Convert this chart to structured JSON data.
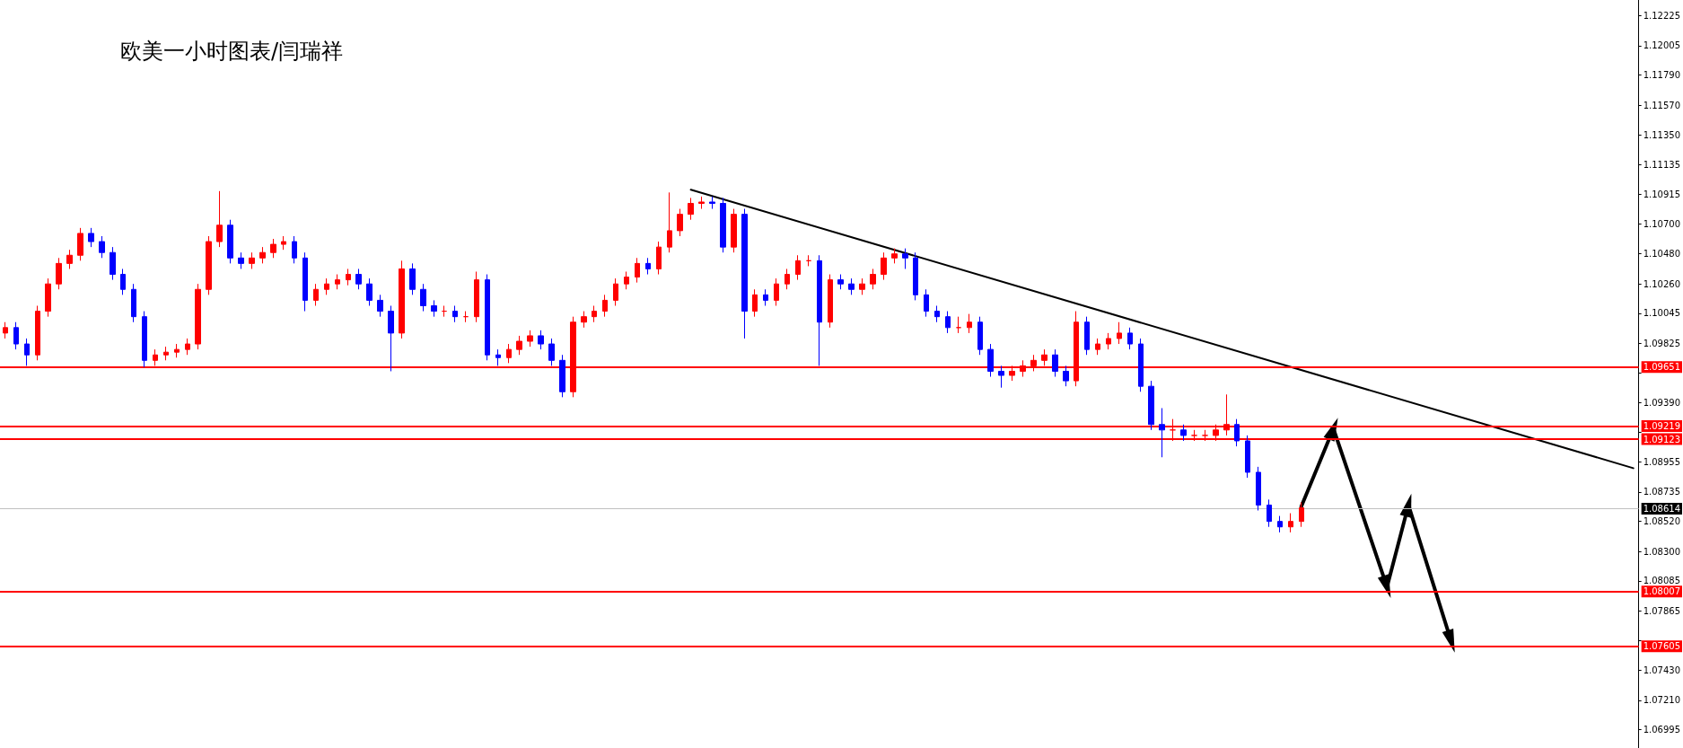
{
  "chart_data": {
    "type": "candlestick",
    "title": "欧美一小时图表/闫瑞祥",
    "tick_labels": "y",
    "grid": false,
    "categories": [
      null,
      null,
      null,
      null,
      null,
      null,
      null,
      null,
      null,
      null,
      null,
      null,
      null,
      null,
      null,
      null,
      null,
      null,
      null,
      null,
      null,
      null,
      null,
      null,
      null,
      null,
      null,
      null,
      null,
      null,
      null,
      null,
      null,
      null,
      null,
      null,
      null,
      null,
      null,
      null,
      null,
      null,
      null,
      null,
      null,
      null,
      null,
      null,
      null,
      null,
      null,
      null,
      null,
      null,
      null,
      null,
      null,
      null,
      null,
      null,
      null,
      null,
      null,
      null,
      null,
      null,
      null,
      null,
      null,
      null,
      null,
      null,
      null,
      null,
      null,
      null,
      null,
      null,
      null,
      null,
      null,
      null,
      null,
      null,
      null,
      null,
      null,
      null,
      null,
      null,
      null,
      null,
      null,
      null,
      null,
      null,
      null,
      null,
      null,
      null,
      null,
      null,
      null,
      null,
      null,
      null,
      null,
      null,
      null,
      null,
      null,
      null,
      null,
      null,
      null,
      null,
      null,
      null,
      null,
      null,
      null,
      null,
      null,
      null,
      null,
      null,
      null,
      null,
      null,
      null,
      null,
      null,
      null,
      null,
      null,
      null,
      null,
      null,
      null,
      null,
      null,
      null,
      null,
      null,
      null,
      null,
      null,
      null,
      null,
      null,
      null,
      null,
      null
    ],
    "ylim": [
      1.0686,
      1.1234
    ],
    "yticks": [
      {
        "value": 1.12225,
        "label": "1.12225"
      },
      {
        "value": 1.12005,
        "label": "1.12005"
      },
      {
        "value": 1.1179,
        "label": "1.11790"
      },
      {
        "value": 1.1157,
        "label": "1.11570"
      },
      {
        "value": 1.1135,
        "label": "1.11350"
      },
      {
        "value": 1.11135,
        "label": "1.11135"
      },
      {
        "value": 1.10915,
        "label": "1.10915"
      },
      {
        "value": 1.107,
        "label": "1.10700"
      },
      {
        "value": 1.1048,
        "label": "1.10480"
      },
      {
        "value": 1.1026,
        "label": "1.10260"
      },
      {
        "value": 1.10045,
        "label": "1.10045"
      },
      {
        "value": 1.09825,
        "label": "1.09825"
      },
      {
        "value": 1.0961,
        "label": null
      },
      {
        "value": 1.0939,
        "label": "1.09390"
      },
      {
        "value": 1.09175,
        "label": null
      },
      {
        "value": 1.08955,
        "label": "1.08955"
      },
      {
        "value": 1.08735,
        "label": "1.08735"
      },
      {
        "value": 1.0852,
        "label": "1.08520"
      },
      {
        "value": 1.083,
        "label": "1.08300"
      },
      {
        "value": 1.08085,
        "label": "1.08085"
      },
      {
        "value": 1.07865,
        "label": "1.07865"
      },
      {
        "value": 1.07645,
        "label": null
      },
      {
        "value": 1.0743,
        "label": "1.07430"
      },
      {
        "value": 1.0721,
        "label": "1.07210"
      },
      {
        "value": 1.06995,
        "label": "1.06995"
      }
    ],
    "ref_lines": [
      {
        "axis": "y",
        "value": 1.09651,
        "label": "1.09651",
        "color": "#ff0000"
      },
      {
        "axis": "y",
        "value": 1.09219,
        "label": "1.09219",
        "color": "#ff0000"
      },
      {
        "axis": "y",
        "value": 1.09123,
        "label": "1.09123",
        "color": "#ff0000"
      },
      {
        "axis": "y",
        "value": 1.08614,
        "label": "1.08614",
        "color": "#c0c0c0"
      },
      {
        "axis": "y",
        "value": 1.08007,
        "label": "1.08007",
        "color": "#ff0000"
      },
      {
        "axis": "y",
        "value": 1.07605,
        "label": "1.07605",
        "color": "#ff0000"
      }
    ],
    "series": [
      {
        "colors": [
          "#ff0000",
          "#0000ff",
          "#0000ff",
          "#ff0000",
          "#ff0000",
          "#ff0000",
          "#ff0000",
          "#ff0000",
          "#0000ff",
          "#0000ff",
          "#0000ff",
          "#0000ff",
          "#0000ff",
          "#0000ff",
          "#ff0000",
          "#ff0000",
          "#ff0000",
          "#ff0000",
          "#ff0000",
          "#ff0000",
          "#ff0000",
          "#0000ff",
          "#0000ff",
          "#ff0000",
          "#ff0000",
          "#ff0000",
          "#ff0000",
          "#0000ff",
          "#0000ff",
          "#ff0000",
          "#ff0000",
          "#ff0000",
          "#ff0000",
          "#0000ff",
          "#0000ff",
          "#0000ff",
          "#0000ff",
          "#ff0000",
          "#0000ff",
          "#0000ff",
          "#0000ff",
          "#ff0000",
          "#0000ff",
          "#ff0000",
          "#ff0000",
          "#0000ff",
          "#0000ff",
          "#ff0000",
          "#ff0000",
          "#ff0000",
          "#0000ff",
          "#0000ff",
          "#0000ff",
          "#ff0000",
          "#ff0000",
          "#ff0000",
          "#ff0000",
          "#ff0000",
          "#ff0000",
          "#ff0000",
          "#0000ff",
          "#ff0000",
          "#ff0000",
          "#ff0000",
          "#ff0000",
          "#ff0000",
          "#0000ff",
          "#0000ff",
          "#ff0000",
          "#0000ff",
          "#ff0000",
          "#0000ff",
          "#ff0000",
          "#ff0000",
          "#ff0000",
          "#ff0000",
          "#0000ff",
          "#ff0000",
          "#0000ff",
          "#0000ff",
          "#ff0000",
          "#ff0000",
          "#ff0000",
          "#ff0000",
          "#0000ff",
          "#0000ff",
          "#0000ff",
          "#0000ff",
          "#0000ff",
          "#ff0000",
          "#ff0000",
          "#0000ff",
          "#0000ff",
          "#0000ff",
          "#ff0000",
          "#ff0000",
          "#ff0000",
          "#ff0000",
          "#0000ff",
          "#0000ff",
          "#ff0000",
          "#0000ff",
          "#ff0000",
          "#ff0000",
          "#ff0000",
          "#0000ff",
          "#0000ff",
          "#0000ff",
          "#0000ff",
          "#ff0000",
          "#0000ff",
          "#ff0000",
          "#ff0000",
          "#ff0000",
          "#ff0000",
          "#0000ff",
          "#0000ff",
          "#0000ff",
          "#0000ff",
          "#0000ff",
          "#ff0000",
          "#ff0000",
          null,
          null,
          null,
          null,
          null,
          null,
          null,
          null,
          null,
          null,
          null,
          null,
          null,
          null,
          null,
          null,
          null,
          null,
          null,
          null,
          null,
          null,
          null,
          null,
          null,
          null,
          null,
          null,
          null,
          null,
          null
        ],
        "ohlc": [
          [
            1.099,
            1.0998,
            1.0986,
            1.0994
          ],
          [
            1.0994,
            1.0998,
            1.0978,
            1.0982
          ],
          [
            1.0982,
            1.0986,
            1.0966,
            1.0974
          ],
          [
            1.0974,
            1.101,
            1.097,
            1.1006
          ],
          [
            1.1006,
            1.103,
            1.1002,
            1.1026
          ],
          [
            1.1026,
            1.1045,
            1.1022,
            1.1041
          ],
          [
            1.1041,
            1.1051,
            1.1037,
            1.1047
          ],
          [
            1.1047,
            1.1067,
            1.1043,
            1.1063
          ],
          [
            1.1063,
            1.1067,
            1.1053,
            1.1057
          ],
          [
            1.1057,
            1.1061,
            1.1045,
            1.1049
          ],
          [
            1.1049,
            1.1053,
            1.1029,
            1.1033
          ],
          [
            1.1033,
            1.1037,
            1.1018,
            1.1022
          ],
          [
            1.1022,
            1.1026,
            1.0998,
            1.1002
          ],
          [
            1.1002,
            1.1006,
            1.0965,
            1.097
          ],
          [
            1.097,
            1.0978,
            1.0966,
            1.0974
          ],
          [
            1.0974,
            1.098,
            1.097,
            1.0976
          ],
          [
            1.0976,
            1.0982,
            1.0972,
            1.0978
          ],
          [
            1.0978,
            1.0986,
            1.0974,
            1.0982
          ],
          [
            1.0982,
            1.1026,
            1.0978,
            1.1022
          ],
          [
            1.1022,
            1.1061,
            1.1018,
            1.1057
          ],
          [
            1.1057,
            1.1094,
            1.1053,
            1.1069
          ],
          [
            1.1069,
            1.1073,
            1.1041,
            1.1045
          ],
          [
            1.1045,
            1.1049,
            1.1037,
            1.1041
          ],
          [
            1.1041,
            1.1049,
            1.1037,
            1.1045
          ],
          [
            1.1045,
            1.1053,
            1.1041,
            1.1049
          ],
          [
            1.1049,
            1.1059,
            1.1045,
            1.1055
          ],
          [
            1.1055,
            1.1061,
            1.1051,
            1.1057
          ],
          [
            1.1057,
            1.1061,
            1.1041,
            1.1045
          ],
          [
            1.1045,
            1.1049,
            1.1006,
            1.1014
          ],
          [
            1.1014,
            1.1026,
            1.101,
            1.1022
          ],
          [
            1.1022,
            1.103,
            1.1018,
            1.1026
          ],
          [
            1.1026,
            1.1033,
            1.1022,
            1.1029
          ],
          [
            1.1029,
            1.1037,
            1.1025,
            1.1033
          ],
          [
            1.1033,
            1.1037,
            1.1022,
            1.1026
          ],
          [
            1.1026,
            1.103,
            1.101,
            1.1014
          ],
          [
            1.1014,
            1.1018,
            1.1002,
            1.1006
          ],
          [
            1.1006,
            1.101,
            1.0962,
            1.099
          ],
          [
            1.099,
            1.1043,
            1.0986,
            1.1037
          ],
          [
            1.1037,
            1.1041,
            1.1018,
            1.1022
          ],
          [
            1.1022,
            1.1026,
            1.1006,
            1.101
          ],
          [
            1.101,
            1.1014,
            1.1002,
            1.1006
          ],
          [
            1.1006,
            1.101,
            1.1002,
            1.1006
          ],
          [
            1.1006,
            1.101,
            1.0998,
            1.1002
          ],
          [
            1.1002,
            1.1006,
            1.0998,
            1.1002
          ],
          [
            1.1002,
            1.1035,
            1.0998,
            1.1029
          ],
          [
            1.1029,
            1.1033,
            1.097,
            1.0974
          ],
          [
            1.0974,
            1.0978,
            1.0966,
            1.0972
          ],
          [
            1.0972,
            1.0982,
            1.0968,
            1.0978
          ],
          [
            1.0978,
            1.0988,
            1.0974,
            1.0984
          ],
          [
            1.0984,
            1.0992,
            1.098,
            1.0988
          ],
          [
            1.0988,
            1.0992,
            1.0978,
            1.0982
          ],
          [
            1.0982,
            1.0986,
            1.0966,
            1.097
          ],
          [
            1.097,
            1.0974,
            1.0943,
            1.0947
          ],
          [
            1.0947,
            1.1002,
            1.0943,
            1.0998
          ],
          [
            1.0998,
            1.1006,
            1.0994,
            1.1002
          ],
          [
            1.1002,
            1.101,
            1.0998,
            1.1006
          ],
          [
            1.1006,
            1.1018,
            1.1002,
            1.1014
          ],
          [
            1.1014,
            1.103,
            1.101,
            1.1026
          ],
          [
            1.1026,
            1.1035,
            1.1022,
            1.1031
          ],
          [
            1.1031,
            1.1045,
            1.1027,
            1.1041
          ],
          [
            1.1041,
            1.1045,
            1.1033,
            1.1037
          ],
          [
            1.1037,
            1.1057,
            1.1033,
            1.1053
          ],
          [
            1.1053,
            1.1093,
            1.1049,
            1.1065
          ],
          [
            1.1065,
            1.1081,
            1.1061,
            1.1077
          ],
          [
            1.1077,
            1.1089,
            1.1073,
            1.1085
          ],
          [
            1.1085,
            1.109,
            1.1081,
            1.1086
          ],
          [
            1.1086,
            1.109,
            1.1081,
            1.1085
          ],
          [
            1.1085,
            1.1089,
            1.1049,
            1.1053
          ],
          [
            1.1053,
            1.1081,
            1.1049,
            1.1077
          ],
          [
            1.1077,
            1.1081,
            1.0986,
            1.1006
          ],
          [
            1.1006,
            1.1022,
            1.1002,
            1.1018
          ],
          [
            1.1018,
            1.1022,
            1.101,
            1.1014
          ],
          [
            1.1014,
            1.103,
            1.101,
            1.1026
          ],
          [
            1.1026,
            1.1037,
            1.1022,
            1.1033
          ],
          [
            1.1033,
            1.1047,
            1.1029,
            1.1043
          ],
          [
            1.1043,
            1.1047,
            1.1039,
            1.1043
          ],
          [
            1.1043,
            1.1047,
            1.0966,
            1.0998
          ],
          [
            1.0998,
            1.1033,
            1.0994,
            1.1029
          ],
          [
            1.1029,
            1.1033,
            1.1022,
            1.1026
          ],
          [
            1.1026,
            1.103,
            1.1018,
            1.1022
          ],
          [
            1.1022,
            1.103,
            1.1018,
            1.1026
          ],
          [
            1.1026,
            1.1037,
            1.1022,
            1.1033
          ],
          [
            1.1033,
            1.1049,
            1.1029,
            1.1045
          ],
          [
            1.1045,
            1.1052,
            1.1041,
            1.1048
          ],
          [
            1.1048,
            1.1052,
            1.1037,
            1.1045
          ],
          [
            1.1045,
            1.1049,
            1.1014,
            1.1018
          ],
          [
            1.1018,
            1.1022,
            1.1002,
            1.1006
          ],
          [
            1.1006,
            1.101,
            1.0998,
            1.1002
          ],
          [
            1.1002,
            1.1006,
            1.099,
            1.0994
          ],
          [
            1.0994,
            1.1002,
            1.099,
            1.0994
          ],
          [
            1.0994,
            1.1004,
            1.099,
            1.0998
          ],
          [
            1.0998,
            1.1002,
            1.0974,
            1.0978
          ],
          [
            1.0978,
            1.0982,
            1.0958,
            1.0962
          ],
          [
            1.0962,
            1.0966,
            1.095,
            1.0959
          ],
          [
            1.0959,
            1.0966,
            1.0955,
            1.0962
          ],
          [
            1.0962,
            1.097,
            1.0958,
            1.0966
          ],
          [
            1.0966,
            1.0974,
            1.0962,
            1.097
          ],
          [
            1.097,
            1.0978,
            1.0966,
            1.0974
          ],
          [
            1.0974,
            1.0978,
            1.0958,
            1.0962
          ],
          [
            1.0962,
            1.0966,
            1.0951,
            1.0955
          ],
          [
            1.0955,
            1.1006,
            1.0951,
            1.0998
          ],
          [
            1.0998,
            1.1002,
            1.0974,
            1.0978
          ],
          [
            1.0978,
            1.0986,
            1.0974,
            1.0982
          ],
          [
            1.0982,
            1.099,
            1.0978,
            1.0986
          ],
          [
            1.0986,
            1.0998,
            1.0982,
            1.099
          ],
          [
            1.099,
            1.0994,
            1.0978,
            1.0982
          ],
          [
            1.0982,
            1.0986,
            1.0947,
            1.0951
          ],
          [
            1.0951,
            1.0955,
            1.0919,
            1.0923
          ],
          [
            1.0923,
            1.0935,
            1.0899,
            1.0919
          ],
          [
            1.0919,
            1.0927,
            1.0911,
            1.0919
          ],
          [
            1.0919,
            1.0923,
            1.0911,
            1.0915
          ],
          [
            1.0915,
            1.0919,
            1.0911,
            1.0915
          ],
          [
            1.0915,
            1.0919,
            1.0911,
            1.0915
          ],
          [
            1.0915,
            1.0923,
            1.0911,
            1.0919
          ],
          [
            1.0919,
            1.0945,
            1.0915,
            1.0923
          ],
          [
            1.0923,
            1.0927,
            1.0907,
            1.0911
          ],
          [
            1.0911,
            1.0915,
            1.0884,
            1.0888
          ],
          [
            1.0888,
            1.0892,
            1.086,
            1.0864
          ],
          [
            1.0864,
            1.0868,
            1.0848,
            1.0852
          ],
          [
            1.0852,
            1.0856,
            1.0844,
            1.0848
          ],
          [
            1.0848,
            1.0858,
            1.0844,
            1.0852
          ],
          [
            1.0852,
            1.0866,
            1.0848,
            1.0862
          ],
          null,
          null,
          null,
          null,
          null,
          null,
          null,
          null,
          null,
          null,
          null,
          null,
          null,
          null,
          null,
          null,
          null,
          null,
          null,
          null,
          null,
          null,
          null,
          null,
          null,
          null,
          null,
          null,
          null,
          null,
          null
        ]
      },
      {
        "type": "line",
        "color": "#000000",
        "marker": "none",
        "line_style": "solid",
        "values": [
          null,
          null,
          null,
          null,
          null,
          null,
          null,
          null,
          null,
          null,
          null,
          null,
          null,
          null,
          null,
          null,
          null,
          null,
          null,
          null,
          null,
          null,
          null,
          null,
          null,
          null,
          null,
          null,
          null,
          null,
          null,
          null,
          null,
          null,
          null,
          null,
          null,
          null,
          null,
          null,
          null,
          null,
          null,
          null,
          null,
          null,
          null,
          null,
          null,
          null,
          null,
          null,
          null,
          null,
          null,
          null,
          null,
          null,
          null,
          null,
          null,
          null,
          null,
          null,
          1.1095,
          null,
          null,
          null,
          null,
          null,
          null,
          null,
          null,
          null,
          null,
          null,
          null,
          null,
          null,
          null,
          null,
          null,
          null,
          null,
          null,
          null,
          null,
          null,
          null,
          null,
          null,
          null,
          null,
          null,
          null,
          null,
          null,
          null,
          null,
          null,
          null,
          null,
          null,
          null,
          null,
          null,
          null,
          null,
          null,
          null,
          null,
          null,
          null,
          null,
          null,
          null,
          null,
          null,
          null,
          null,
          null,
          null,
          null,
          null,
          null,
          null,
          null,
          null,
          null,
          null,
          null,
          null,
          null,
          null,
          null,
          null,
          null,
          null,
          null,
          null,
          null,
          null,
          null,
          null,
          null,
          null,
          null,
          null,
          null,
          null,
          null,
          null,
          1.0891
        ]
      },
      {
        "type": "line",
        "color": "#000000",
        "marker": "triangle",
        "line_style": "solid",
        "values": [
          null,
          null,
          null,
          null,
          null,
          null,
          null,
          null,
          null,
          null,
          null,
          null,
          null,
          null,
          null,
          null,
          null,
          null,
          null,
          null,
          null,
          null,
          null,
          null,
          null,
          null,
          null,
          null,
          null,
          null,
          null,
          null,
          null,
          null,
          null,
          null,
          null,
          null,
          null,
          null,
          null,
          null,
          null,
          null,
          null,
          null,
          null,
          null,
          null,
          null,
          null,
          null,
          null,
          null,
          null,
          null,
          null,
          null,
          null,
          null,
          null,
          null,
          null,
          null,
          null,
          null,
          null,
          null,
          null,
          null,
          null,
          null,
          null,
          null,
          null,
          null,
          null,
          null,
          null,
          null,
          null,
          null,
          null,
          null,
          null,
          null,
          null,
          null,
          null,
          null,
          null,
          null,
          null,
          null,
          null,
          null,
          null,
          null,
          null,
          null,
          null,
          null,
          null,
          null,
          null,
          null,
          null,
          null,
          null,
          null,
          null,
          null,
          null,
          null,
          null,
          null,
          null,
          null,
          null,
          null,
          null,
          1.0863,
          null,
          null,
          1.092,
          null,
          null,
          null,
          null,
          1.0804,
          null,
          1.0864,
          null,
          null,
          null,
          1.0764,
          null,
          null,
          null,
          null,
          null,
          null,
          null,
          null,
          null,
          null,
          null,
          null,
          null,
          null,
          null,
          null,
          null
        ]
      }
    ]
  }
}
